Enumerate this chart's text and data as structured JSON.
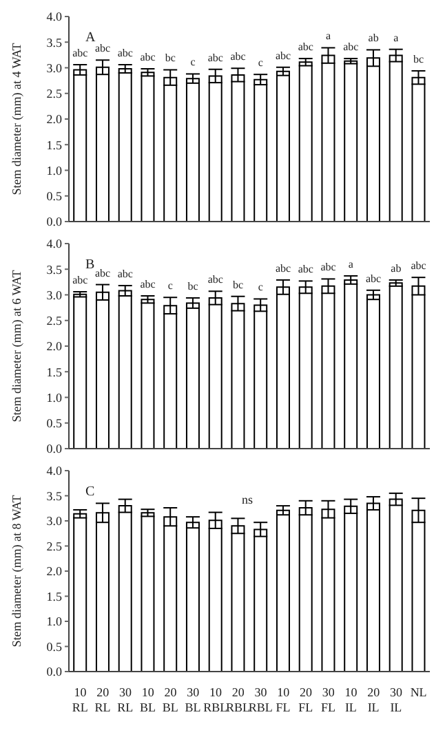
{
  "chart_data": [
    {
      "type": "bar",
      "title": "A",
      "ylabel": "Stem diameter (mm) at 4 WAT",
      "categories": [
        "10 RL",
        "20 RL",
        "30 RL",
        "10 BL",
        "20 BL",
        "30 BL",
        "10 RBL",
        "20 RBL",
        "30 RBL",
        "10 FL",
        "20 FL",
        "30 FL",
        "10 IL",
        "20 IL",
        "30 IL",
        "NL"
      ],
      "series": [
        {
          "color": "#ffffff",
          "values": [
            2.96,
            3.01,
            2.98,
            2.91,
            2.81,
            2.79,
            2.84,
            2.86,
            2.77,
            2.93,
            3.11,
            3.24,
            3.13,
            3.19,
            3.24,
            2.81
          ],
          "errors": [
            0.1,
            0.14,
            0.08,
            0.07,
            0.15,
            0.09,
            0.13,
            0.13,
            0.1,
            0.08,
            0.07,
            0.15,
            0.05,
            0.16,
            0.12,
            0.13
          ]
        }
      ],
      "annotations": [
        {
          "text": "abc",
          "x": "10 RL",
          "y": 3.06
        },
        {
          "text": "abc",
          "x": "20 RL",
          "y": 3.15
        },
        {
          "text": "abc",
          "x": "30 RL",
          "y": 3.06
        },
        {
          "text": "abc",
          "x": "10 BL",
          "y": 2.98
        },
        {
          "text": "bc",
          "x": "20 BL",
          "y": 2.96
        },
        {
          "text": "c",
          "x": "30 BL",
          "y": 2.88
        },
        {
          "text": "abc",
          "x": "10 RBL",
          "y": 2.97
        },
        {
          "text": "abc",
          "x": "20 RBL",
          "y": 2.99
        },
        {
          "text": "c",
          "x": "30 RBL",
          "y": 2.87
        },
        {
          "text": "abc",
          "x": "10 FL",
          "y": 3.01
        },
        {
          "text": "abc",
          "x": "20 FL",
          "y": 3.18
        },
        {
          "text": "a",
          "x": "30 FL",
          "y": 3.39
        },
        {
          "text": "abc",
          "x": "10 IL",
          "y": 3.18
        },
        {
          "text": "ab",
          "x": "20 IL",
          "y": 3.35
        },
        {
          "text": "a",
          "x": "30 IL",
          "y": 3.36
        },
        {
          "text": "bc",
          "x": "NL",
          "y": 2.94
        }
      ],
      "ylim": [
        0,
        4
      ],
      "yticks": [
        {
          "value": 0,
          "label": "0.0"
        },
        {
          "value": 0.5,
          "label": "0.5"
        },
        {
          "value": 1,
          "label": "1.0"
        },
        {
          "value": 1.5,
          "label": "1.5"
        },
        {
          "value": 2,
          "label": "2.0"
        },
        {
          "value": 2.5,
          "label": "2.5"
        },
        {
          "value": 3,
          "label": "3.0"
        },
        {
          "value": 3.5,
          "label": "3.5"
        },
        {
          "value": 4,
          "label": "4.0"
        }
      ],
      "tick_labels": "y"
    },
    {
      "type": "bar",
      "title": "B",
      "ylabel": "Stem diameter (mm) at 6 WAT",
      "categories": [
        "10 RL",
        "20 RL",
        "30 RL",
        "10 BL",
        "20 BL",
        "30 BL",
        "10 RBL",
        "20 RBL",
        "30 RBL",
        "10 FL",
        "20 FL",
        "30 FL",
        "10 IL",
        "20 IL",
        "30 IL",
        "NL"
      ],
      "series": [
        {
          "color": "#ffffff",
          "values": [
            3.01,
            3.05,
            3.08,
            2.91,
            2.79,
            2.84,
            2.94,
            2.83,
            2.8,
            3.15,
            3.15,
            3.17,
            3.29,
            3.0,
            3.23,
            3.17
          ],
          "errors": [
            0.05,
            0.15,
            0.1,
            0.07,
            0.16,
            0.1,
            0.13,
            0.14,
            0.12,
            0.14,
            0.12,
            0.14,
            0.08,
            0.09,
            0.06,
            0.17
          ]
        }
      ],
      "annotations": [
        {
          "text": "abc",
          "x": "10 RL",
          "y": 3.06
        },
        {
          "text": "abc",
          "x": "20 RL",
          "y": 3.2
        },
        {
          "text": "abc",
          "x": "30 RL",
          "y": 3.18
        },
        {
          "text": "abc",
          "x": "10 BL",
          "y": 2.98
        },
        {
          "text": "c",
          "x": "20 BL",
          "y": 2.95
        },
        {
          "text": "bc",
          "x": "30 BL",
          "y": 2.94
        },
        {
          "text": "abc",
          "x": "10 RBL",
          "y": 3.07
        },
        {
          "text": "bc",
          "x": "20 RBL",
          "y": 2.97
        },
        {
          "text": "c",
          "x": "30 RBL",
          "y": 2.92
        },
        {
          "text": "abc",
          "x": "10 FL",
          "y": 3.29
        },
        {
          "text": "abc",
          "x": "20 FL",
          "y": 3.27
        },
        {
          "text": "abc",
          "x": "30 FL",
          "y": 3.31
        },
        {
          "text": "a",
          "x": "10 IL",
          "y": 3.37
        },
        {
          "text": "abc",
          "x": "20 IL",
          "y": 3.09
        },
        {
          "text": "ab",
          "x": "30 IL",
          "y": 3.29
        },
        {
          "text": "abc",
          "x": "NL",
          "y": 3.34
        }
      ],
      "ylim": [
        0,
        4
      ],
      "yticks": [
        {
          "value": 0,
          "label": "0.0"
        },
        {
          "value": 0.5,
          "label": "0.5"
        },
        {
          "value": 1,
          "label": "1.0"
        },
        {
          "value": 1.5,
          "label": "1.5"
        },
        {
          "value": 2,
          "label": "2.0"
        },
        {
          "value": 2.5,
          "label": "2.5"
        },
        {
          "value": 3,
          "label": "3.0"
        },
        {
          "value": 3.5,
          "label": "3.5"
        },
        {
          "value": 4,
          "label": "4.0"
        }
      ],
      "tick_labels": "y"
    },
    {
      "type": "bar",
      "title": "C",
      "ylabel": "Stem diameter (mm) at 8 WAT",
      "categories": [
        "10 RL",
        "20 RL",
        "30 RL",
        "10 BL",
        "20 BL",
        "30 BL",
        "10 RBL",
        "20 RBL",
        "30 RBL",
        "10 FL",
        "20 FL",
        "30 FL",
        "10 IL",
        "20 IL",
        "30 IL",
        "NL"
      ],
      "series": [
        {
          "color": "#ffffff",
          "values": [
            3.14,
            3.16,
            3.3,
            3.16,
            3.08,
            2.97,
            3.01,
            2.9,
            2.83,
            3.21,
            3.26,
            3.23,
            3.29,
            3.35,
            3.43,
            3.21
          ],
          "errors": [
            0.08,
            0.19,
            0.13,
            0.07,
            0.18,
            0.11,
            0.16,
            0.15,
            0.14,
            0.09,
            0.14,
            0.17,
            0.14,
            0.13,
            0.12,
            0.24
          ]
        }
      ],
      "annotations": [
        "ns"
      ],
      "ylim": [
        0,
        4
      ],
      "yticks": [
        {
          "value": 0,
          "label": "0.0"
        },
        {
          "value": 0.5,
          "label": "0.5"
        },
        {
          "value": 1,
          "label": "1.0"
        },
        {
          "value": 1.5,
          "label": "1.5"
        },
        {
          "value": 2,
          "label": "2.0"
        },
        {
          "value": 2.5,
          "label": "2.5"
        },
        {
          "value": 3,
          "label": "3.0"
        },
        {
          "value": 3.5,
          "label": "3.5"
        },
        {
          "value": 4,
          "label": "4.0"
        }
      ]
    }
  ]
}
